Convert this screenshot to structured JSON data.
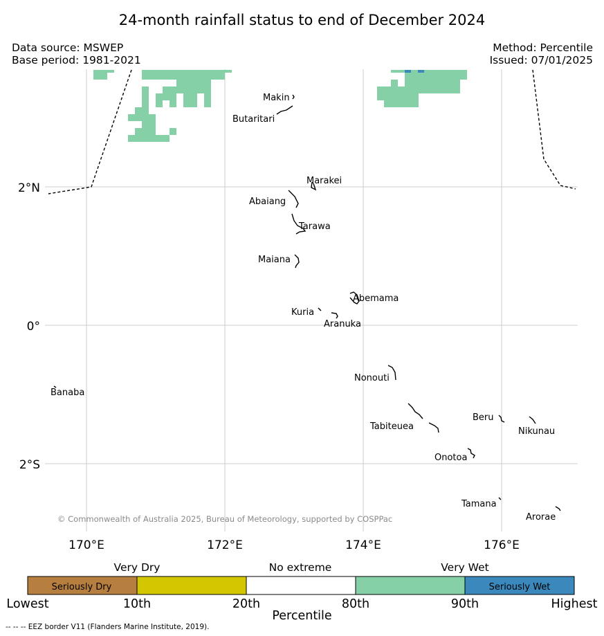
{
  "title": "24-month rainfall status to end of December 2024",
  "meta": {
    "data_source": "Data source: MSWEP",
    "base_period": "Base period: 1981-2021",
    "method": "Method: Percentile",
    "issued": "Issued: 07/01/2025"
  },
  "map": {
    "region": "Kiribati (Gilbert Islands)",
    "projection": "equirectangular",
    "lon_range": [
      169.5,
      177.0
    ],
    "lat_range": [
      -3.0,
      3.7
    ],
    "gridlines": true,
    "x_ticks": [
      "170°E",
      "172°E",
      "174°E",
      "176°E"
    ],
    "y_ticks": [
      "2°N",
      "0°",
      "2°S"
    ],
    "islands": [
      {
        "name": "Makin",
        "lon": 173.0,
        "lat": 3.3
      },
      {
        "name": "Butaritari",
        "lon": 172.9,
        "lat": 3.1
      },
      {
        "name": "Marakei",
        "lon": 173.3,
        "lat": 2.0
      },
      {
        "name": "Abaiang",
        "lon": 173.0,
        "lat": 1.85
      },
      {
        "name": "Tarawa",
        "lon": 173.0,
        "lat": 1.4
      },
      {
        "name": "Maiana",
        "lon": 173.0,
        "lat": 0.95
      },
      {
        "name": "Abemama",
        "lon": 173.9,
        "lat": 0.4
      },
      {
        "name": "Kuria",
        "lon": 173.4,
        "lat": 0.22
      },
      {
        "name": "Aranuka",
        "lon": 173.6,
        "lat": 0.17
      },
      {
        "name": "Nonouti",
        "lon": 174.4,
        "lat": -0.65
      },
      {
        "name": "Banaba",
        "lon": 169.5,
        "lat": -0.87
      },
      {
        "name": "Tabiteuea",
        "lon": 174.8,
        "lat": -1.3
      },
      {
        "name": "Beru",
        "lon": 176.0,
        "lat": -1.3
      },
      {
        "name": "Nikunau",
        "lon": 176.45,
        "lat": -1.35
      },
      {
        "name": "Onotoa",
        "lon": 175.55,
        "lat": -1.85
      },
      {
        "name": "Tamana",
        "lon": 175.98,
        "lat": -2.5
      },
      {
        "name": "Arorae",
        "lon": 176.8,
        "lat": -2.65
      }
    ],
    "shaded_category": "Very Wet",
    "copyright": "© Commonwealth of Australia 2025, Bureau of Meteorology, supported by COSPPac"
  },
  "legend": {
    "headers": [
      "Very Dry",
      "No extreme",
      "Very Wet"
    ],
    "segments": [
      {
        "label": "Seriously Dry",
        "color": "#b77f3f"
      },
      {
        "label": "",
        "color": "#d2c700"
      },
      {
        "label": "",
        "color": "#ffffff"
      },
      {
        "label": "",
        "color": "#86d0a8"
      },
      {
        "label": "Seriously Wet",
        "color": "#3a88bc"
      }
    ],
    "ticks": [
      "Lowest",
      "10th",
      "20th",
      "80th",
      "90th",
      "Highest"
    ],
    "axis_label": "Percentile"
  },
  "footnote": "--  --  -- EEZ border V11 (Flanders Marine Institute, 2019)."
}
